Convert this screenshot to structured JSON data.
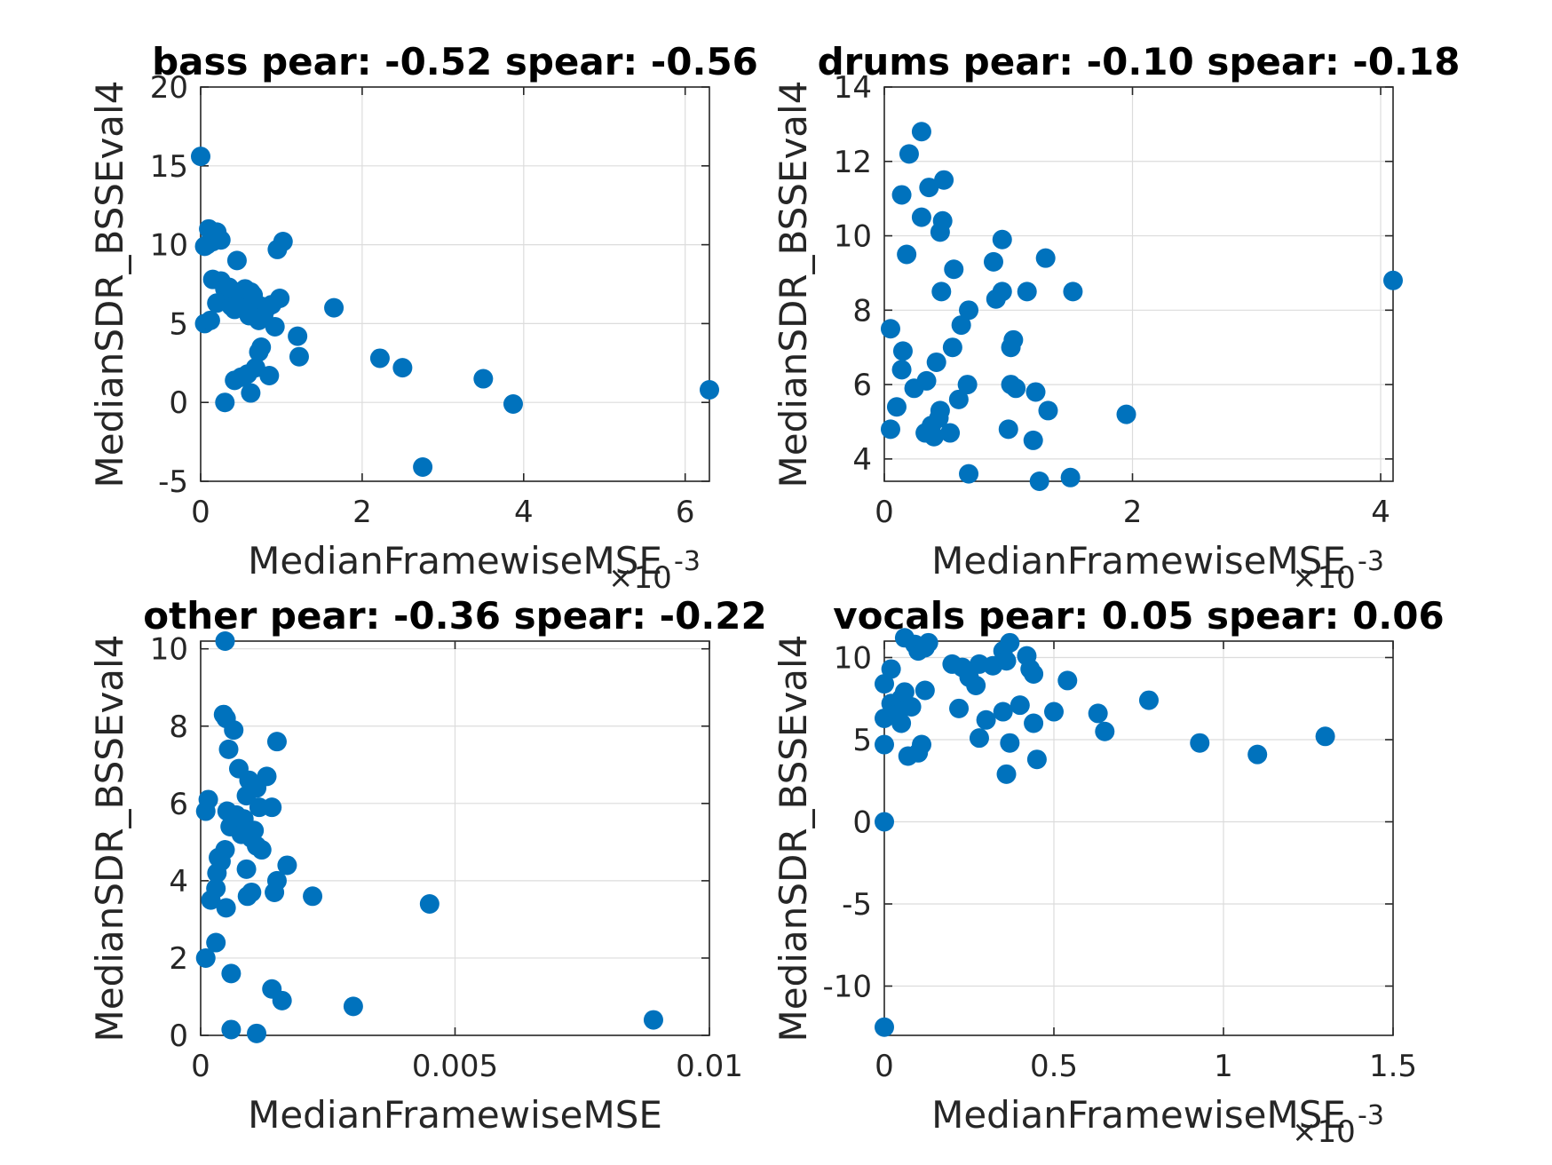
{
  "chart_data": [
    {
      "type": "scatter",
      "title": "bass pear: -0.52 spear: -0.56",
      "xlabel": "MedianFramewiseMSE",
      "ylabel": "MedianSDR_BSSEval4",
      "x_exponent_label": "×10",
      "x_exponent_power": "-3",
      "xlim": [
        0,
        6.3
      ],
      "ylim": [
        -5,
        20
      ],
      "xticks": [
        0,
        2,
        4,
        6
      ],
      "yticks": [
        -5,
        0,
        5,
        10,
        15,
        20
      ],
      "xtick_labels": [
        "0",
        "2",
        "4",
        "6"
      ],
      "ytick_labels": [
        "-5",
        "0",
        "5",
        "10",
        "15",
        "20"
      ],
      "grid": true,
      "marker_color": "#0072bd",
      "points": [
        [
          0.0,
          15.6
        ],
        [
          0.05,
          9.9
        ],
        [
          0.08,
          10.0
        ],
        [
          0.1,
          11.0
        ],
        [
          0.15,
          10.2
        ],
        [
          0.2,
          10.8
        ],
        [
          0.25,
          10.3
        ],
        [
          0.05,
          5.0
        ],
        [
          0.12,
          5.2
        ],
        [
          0.15,
          7.8
        ],
        [
          0.2,
          6.3
        ],
        [
          0.25,
          7.7
        ],
        [
          0.3,
          7.2
        ],
        [
          0.33,
          6.8
        ],
        [
          0.35,
          7.3
        ],
        [
          0.38,
          6.1
        ],
        [
          0.42,
          5.9
        ],
        [
          0.45,
          9.0
        ],
        [
          0.48,
          7.0
        ],
        [
          0.5,
          6.5
        ],
        [
          0.55,
          7.2
        ],
        [
          0.58,
          6.0
        ],
        [
          0.6,
          5.5
        ],
        [
          0.62,
          7.0
        ],
        [
          0.65,
          6.8
        ],
        [
          0.7,
          5.7
        ],
        [
          0.72,
          5.2
        ],
        [
          0.75,
          6.1
        ],
        [
          0.78,
          5.5
        ],
        [
          0.82,
          6.0
        ],
        [
          0.88,
          6.2
        ],
        [
          0.92,
          4.8
        ],
        [
          0.95,
          9.7
        ],
        [
          0.98,
          6.6
        ],
        [
          1.02,
          10.2
        ],
        [
          0.3,
          0.0
        ],
        [
          0.42,
          1.4
        ],
        [
          0.5,
          1.6
        ],
        [
          0.58,
          1.8
        ],
        [
          0.62,
          0.6
        ],
        [
          0.68,
          2.2
        ],
        [
          0.75,
          3.5
        ],
        [
          0.72,
          3.2
        ],
        [
          0.85,
          1.7
        ],
        [
          1.2,
          4.2
        ],
        [
          1.22,
          2.9
        ],
        [
          1.65,
          6.0
        ],
        [
          2.22,
          2.8
        ],
        [
          2.5,
          2.2
        ],
        [
          2.75,
          -4.1
        ],
        [
          3.5,
          1.5
        ],
        [
          3.87,
          -0.1
        ],
        [
          6.3,
          0.8
        ]
      ]
    },
    {
      "type": "scatter",
      "title": "drums pear: -0.10 spear: -0.18",
      "xlabel": "MedianFramewiseMSE",
      "ylabel": "MedianSDR_BSSEval4",
      "x_exponent_label": "×10",
      "x_exponent_power": "-3",
      "xlim": [
        0,
        4.1
      ],
      "ylim": [
        3.4,
        14
      ],
      "xticks": [
        0,
        2,
        4
      ],
      "yticks": [
        4,
        6,
        8,
        10,
        12,
        14
      ],
      "xtick_labels": [
        "0",
        "2",
        "4"
      ],
      "ytick_labels": [
        "4",
        "6",
        "8",
        "10",
        "12",
        "14"
      ],
      "grid": true,
      "marker_color": "#0072bd",
      "points": [
        [
          0.05,
          4.8
        ],
        [
          0.05,
          7.5
        ],
        [
          0.1,
          5.4
        ],
        [
          0.14,
          6.4
        ],
        [
          0.15,
          6.9
        ],
        [
          0.14,
          11.1
        ],
        [
          0.18,
          9.5
        ],
        [
          0.2,
          12.2
        ],
        [
          0.24,
          5.9
        ],
        [
          0.3,
          10.5
        ],
        [
          0.3,
          12.8
        ],
        [
          0.33,
          4.7
        ],
        [
          0.34,
          6.1
        ],
        [
          0.36,
          11.3
        ],
        [
          0.38,
          4.9
        ],
        [
          0.4,
          4.6
        ],
        [
          0.42,
          6.6
        ],
        [
          0.44,
          5.1
        ],
        [
          0.45,
          5.3
        ],
        [
          0.46,
          8.5
        ],
        [
          0.45,
          10.1
        ],
        [
          0.47,
          10.4
        ],
        [
          0.48,
          11.5
        ],
        [
          0.53,
          4.7
        ],
        [
          0.55,
          7.0
        ],
        [
          0.56,
          9.1
        ],
        [
          0.6,
          5.6
        ],
        [
          0.62,
          7.6
        ],
        [
          0.67,
          6.0
        ],
        [
          0.68,
          3.6
        ],
        [
          0.68,
          8.0
        ],
        [
          0.88,
          9.3
        ],
        [
          0.9,
          8.3
        ],
        [
          0.95,
          8.5
        ],
        [
          0.95,
          9.9
        ],
        [
          1.0,
          4.8
        ],
        [
          1.02,
          6.0
        ],
        [
          1.02,
          7.0
        ],
        [
          1.04,
          7.2
        ],
        [
          1.06,
          5.9
        ],
        [
          1.15,
          8.5
        ],
        [
          1.2,
          4.5
        ],
        [
          1.22,
          5.8
        ],
        [
          1.25,
          3.4
        ],
        [
          1.32,
          5.3
        ],
        [
          1.3,
          9.4
        ],
        [
          1.5,
          3.5
        ],
        [
          1.52,
          8.5
        ],
        [
          1.95,
          5.2
        ],
        [
          4.1,
          8.8
        ]
      ]
    },
    {
      "type": "scatter",
      "title": "other pear: -0.36 spear: -0.22",
      "xlabel": "MedianFramewiseMSE",
      "ylabel": "MedianSDR_BSSEval4",
      "x_exponent_label": "",
      "x_exponent_power": "",
      "xlim": [
        0,
        0.01
      ],
      "ylim": [
        0,
        10.2
      ],
      "xticks": [
        0,
        0.005,
        0.01
      ],
      "yticks": [
        0,
        2,
        4,
        6,
        8,
        10
      ],
      "xtick_labels": [
        "0",
        "0.005",
        "0.01"
      ],
      "ytick_labels": [
        "0",
        "2",
        "4",
        "6",
        "8",
        "10"
      ],
      "grid": true,
      "marker_color": "#0072bd",
      "points": [
        [
          0.0001,
          2.0
        ],
        [
          0.0001,
          5.8
        ],
        [
          0.00015,
          6.1
        ],
        [
          0.0002,
          3.5
        ],
        [
          0.0003,
          2.4
        ],
        [
          0.0003,
          3.8
        ],
        [
          0.00032,
          4.2
        ],
        [
          0.00035,
          4.6
        ],
        [
          0.0004,
          4.5
        ],
        [
          0.00045,
          8.3
        ],
        [
          0.0005,
          8.2
        ],
        [
          0.00048,
          4.8
        ],
        [
          0.0005,
          3.3
        ],
        [
          0.00052,
          5.8
        ],
        [
          0.00055,
          7.4
        ],
        [
          0.00058,
          5.4
        ],
        [
          0.0006,
          1.6
        ],
        [
          0.0006,
          0.15
        ],
        [
          0.00065,
          7.9
        ],
        [
          0.0007,
          5.7
        ],
        [
          0.0008,
          5.2
        ],
        [
          0.00075,
          6.9
        ],
        [
          0.00085,
          5.6
        ],
        [
          0.0009,
          6.2
        ],
        [
          0.0009,
          4.3
        ],
        [
          0.00092,
          3.6
        ],
        [
          0.00095,
          6.6
        ],
        [
          0.001,
          5.1
        ],
        [
          0.001,
          3.7
        ],
        [
          0.00105,
          5.3
        ],
        [
          0.0011,
          6.4
        ],
        [
          0.0011,
          4.9
        ],
        [
          0.0011,
          0.05
        ],
        [
          0.00115,
          5.9
        ],
        [
          0.0012,
          4.8
        ],
        [
          0.0013,
          6.7
        ],
        [
          0.0014,
          5.9
        ],
        [
          0.0014,
          1.2
        ],
        [
          0.00145,
          3.7
        ],
        [
          0.0015,
          4.0
        ],
        [
          0.0015,
          7.6
        ],
        [
          0.0016,
          0.9
        ],
        [
          0.0017,
          4.4
        ],
        [
          0.0022,
          3.6
        ],
        [
          0.003,
          0.75
        ],
        [
          0.0045,
          3.4
        ],
        [
          0.0089,
          0.4
        ],
        [
          0.00048,
          10.2
        ]
      ]
    },
    {
      "type": "scatter",
      "title": "vocals pear: 0.05 spear: 0.06",
      "xlabel": "MedianFramewiseMSE",
      "ylabel": "MedianSDR_BSSEval4",
      "x_exponent_label": "×10",
      "x_exponent_power": "-3",
      "xlim": [
        0,
        1.5
      ],
      "ylim": [
        -13,
        11
      ],
      "xticks": [
        0,
        0.5,
        1,
        1.5
      ],
      "yticks": [
        -10,
        -5,
        0,
        5,
        10
      ],
      "xtick_labels": [
        "0",
        "0.5",
        "1",
        "1.5"
      ],
      "ytick_labels": [
        "-10",
        "-5",
        "0",
        "5",
        "10"
      ],
      "grid": true,
      "marker_color": "#0072bd",
      "points": [
        [
          0.0,
          0.0
        ],
        [
          0.0,
          -12.5
        ],
        [
          0.0,
          4.7
        ],
        [
          0.0,
          6.3
        ],
        [
          0.0,
          8.4
        ],
        [
          0.02,
          7.2
        ],
        [
          0.02,
          9.3
        ],
        [
          0.04,
          6.6
        ],
        [
          0.05,
          7.5
        ],
        [
          0.05,
          6.0
        ],
        [
          0.06,
          11.2
        ],
        [
          0.06,
          7.9
        ],
        [
          0.07,
          4.0
        ],
        [
          0.08,
          7.0
        ],
        [
          0.09,
          10.8
        ],
        [
          0.1,
          10.4
        ],
        [
          0.1,
          4.2
        ],
        [
          0.11,
          4.7
        ],
        [
          0.12,
          10.6
        ],
        [
          0.12,
          8.0
        ],
        [
          0.13,
          10.9
        ],
        [
          0.2,
          9.6
        ],
        [
          0.22,
          6.9
        ],
        [
          0.23,
          9.4
        ],
        [
          0.25,
          8.8
        ],
        [
          0.27,
          8.3
        ],
        [
          0.28,
          9.6
        ],
        [
          0.28,
          5.1
        ],
        [
          0.3,
          6.2
        ],
        [
          0.32,
          9.5
        ],
        [
          0.35,
          10.4
        ],
        [
          0.35,
          6.7
        ],
        [
          0.36,
          2.9
        ],
        [
          0.36,
          9.8
        ],
        [
          0.37,
          4.8
        ],
        [
          0.37,
          10.9
        ],
        [
          0.4,
          7.1
        ],
        [
          0.42,
          10.1
        ],
        [
          0.43,
          9.3
        ],
        [
          0.44,
          6.0
        ],
        [
          0.44,
          9.0
        ],
        [
          0.45,
          3.8
        ],
        [
          0.5,
          6.7
        ],
        [
          0.54,
          8.6
        ],
        [
          0.63,
          6.6
        ],
        [
          0.65,
          5.5
        ],
        [
          0.78,
          7.4
        ],
        [
          0.93,
          4.8
        ],
        [
          1.1,
          4.1
        ],
        [
          1.3,
          5.2
        ]
      ]
    }
  ]
}
